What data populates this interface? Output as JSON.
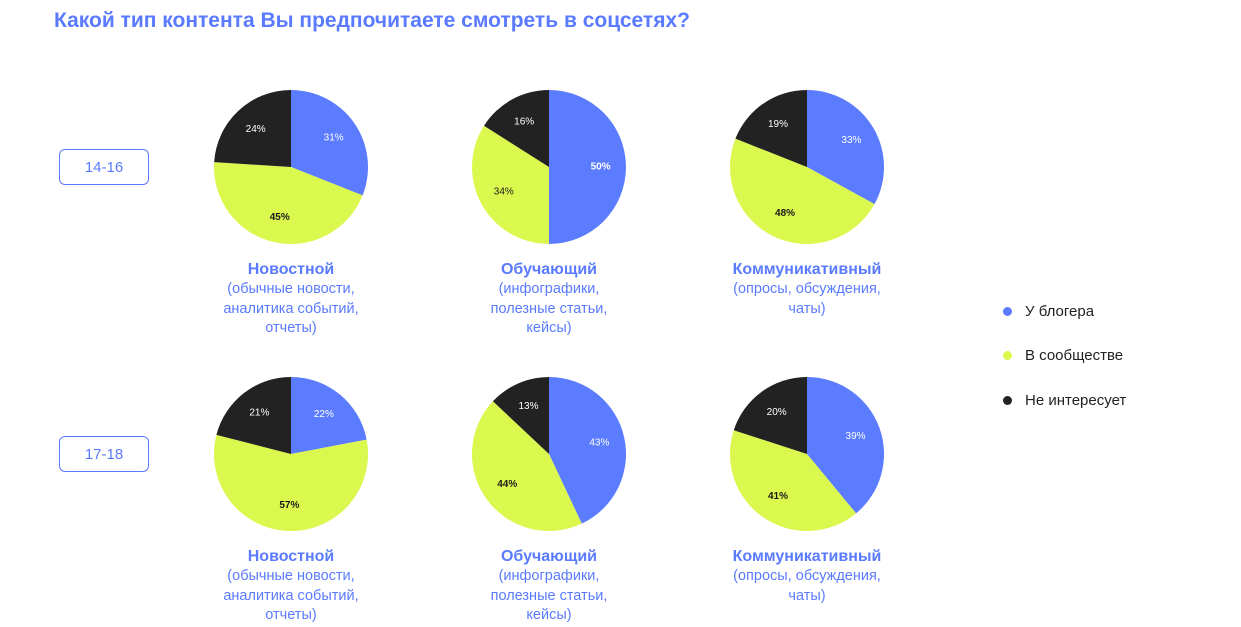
{
  "title": "Какой тип контента Вы предпочитаете смотреть в соцсетях?",
  "colors": {
    "blogger": "#5b7cff",
    "community": "#dbf84f",
    "not_interested": "#222222",
    "accent": "#5a7bff"
  },
  "rows": [
    {
      "label": "14-16"
    },
    {
      "label": "17-18"
    }
  ],
  "legend": [
    {
      "label": "У блогера",
      "color": "#5b7cff"
    },
    {
      "label": "В сообществе",
      "color": "#dbf84f"
    },
    {
      "label": "Не интересует",
      "color": "#222222"
    }
  ],
  "captions": {
    "news": {
      "title": "Новостной",
      "desc": "(обычные новости,\nаналитика событий,\nотчеты)"
    },
    "edu": {
      "title": "Обучающий",
      "desc": "(инфографики,\nполезные статьи,\nкейсы)"
    },
    "comm": {
      "title": "Коммуникативный",
      "desc": "(опросы, обсуждения,\nчаты)"
    }
  },
  "chart_data": [
    {
      "type": "pie",
      "title": "Новостной",
      "group": "14-16",
      "labels": [
        "У блогера",
        "В сообществе",
        "Не интересует"
      ],
      "values": [
        31,
        45,
        24
      ]
    },
    {
      "type": "pie",
      "title": "Обучающий",
      "group": "14-16",
      "labels": [
        "У блогера",
        "В сообществе",
        "Не интересует"
      ],
      "values": [
        50,
        34,
        16
      ]
    },
    {
      "type": "pie",
      "title": "Коммуникативный",
      "group": "14-16",
      "labels": [
        "У блогера",
        "В сообществе",
        "Не интересует"
      ],
      "values": [
        33,
        48,
        19
      ]
    },
    {
      "type": "pie",
      "title": "Новостной",
      "group": "17-18",
      "labels": [
        "У блогера",
        "В сообществе",
        "Не интересует"
      ],
      "values": [
        22,
        57,
        21
      ]
    },
    {
      "type": "pie",
      "title": "Обучающий",
      "group": "17-18",
      "labels": [
        "У блогера",
        "В сообществе",
        "Не интересует"
      ],
      "values": [
        43,
        44,
        13
      ]
    },
    {
      "type": "pie",
      "title": "Коммуникативный",
      "group": "17-18",
      "labels": [
        "У блогера",
        "В сообществе",
        "Не интересует"
      ],
      "values": [
        39,
        41,
        20
      ]
    }
  ]
}
